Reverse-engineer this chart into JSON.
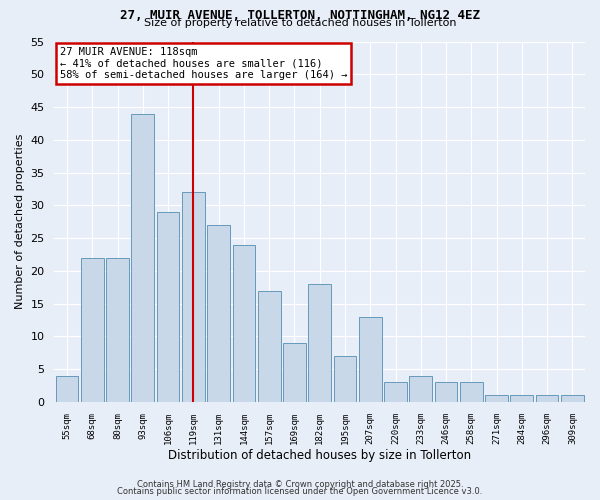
{
  "title1": "27, MUIR AVENUE, TOLLERTON, NOTTINGHAM, NG12 4EZ",
  "title2": "Size of property relative to detached houses in Tollerton",
  "xlabel": "Distribution of detached houses by size in Tollerton",
  "ylabel": "Number of detached properties",
  "categories": [
    "55sqm",
    "68sqm",
    "80sqm",
    "93sqm",
    "106sqm",
    "119sqm",
    "131sqm",
    "144sqm",
    "157sqm",
    "169sqm",
    "182sqm",
    "195sqm",
    "207sqm",
    "220sqm",
    "233sqm",
    "246sqm",
    "258sqm",
    "271sqm",
    "284sqm",
    "296sqm",
    "309sqm"
  ],
  "values": [
    4,
    22,
    22,
    44,
    29,
    32,
    27,
    24,
    17,
    9,
    18,
    7,
    13,
    3,
    4,
    3,
    3,
    1,
    1,
    1,
    1
  ],
  "bar_color": "#c8d8e8",
  "bar_edge_color": "#6699bb",
  "property_line_index": 5,
  "annotation_text": "27 MUIR AVENUE: 118sqm\n← 41% of detached houses are smaller (116)\n58% of semi-detached houses are larger (164) →",
  "annotation_box_color": "#ffffff",
  "annotation_box_edge_color": "#cc0000",
  "line_color": "#cc0000",
  "ylim": [
    0,
    55
  ],
  "yticks": [
    0,
    5,
    10,
    15,
    20,
    25,
    30,
    35,
    40,
    45,
    50,
    55
  ],
  "background_color": "#e8eef8",
  "grid_color": "#ffffff",
  "footer_line1": "Contains HM Land Registry data © Crown copyright and database right 2025.",
  "footer_line2": "Contains public sector information licensed under the Open Government Licence v3.0."
}
